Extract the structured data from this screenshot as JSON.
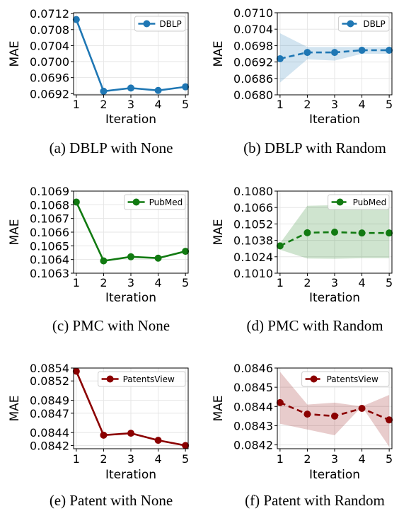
{
  "chart_data": [
    {
      "type": "line",
      "caption": "(a) DBLP with None",
      "xlabel": "Iteration",
      "ylabel": "MAE",
      "x": [
        1,
        2,
        3,
        4,
        5
      ],
      "xlim": [
        0.9,
        5.1
      ],
      "ylim": [
        0.06917,
        0.07122
      ],
      "yticks": [
        0.0692,
        0.0696,
        0.07,
        0.0704,
        0.0708,
        0.0712
      ],
      "ytick_labels": [
        "0.0692",
        "0.0696",
        "0.0700",
        "0.0704",
        "0.0708",
        "0.0712"
      ],
      "grid": true,
      "legend_position": "top-right",
      "color": "#1f77b4",
      "dashed": false,
      "series": [
        {
          "name": "DBLP",
          "values": [
            0.07105,
            0.06926,
            0.06934,
            0.06928,
            0.06937
          ]
        }
      ]
    },
    {
      "type": "line",
      "caption": "(b) DBLP with Random",
      "xlabel": "Iteration",
      "ylabel": "MAE",
      "x": [
        1,
        2,
        3,
        4,
        5
      ],
      "xlim": [
        0.9,
        5.1
      ],
      "ylim": [
        0.068,
        0.071
      ],
      "yticks": [
        0.068,
        0.0686,
        0.0692,
        0.0698,
        0.0704,
        0.071
      ],
      "ytick_labels": [
        "0.0680",
        "0.0686",
        "0.0692",
        "0.0698",
        "0.0704",
        "0.0710"
      ],
      "grid": true,
      "legend_position": "top-right",
      "color": "#1f77b4",
      "dashed": true,
      "series": [
        {
          "name": "DBLP",
          "values": [
            0.06932,
            0.06955,
            0.06955,
            0.06963,
            0.06963
          ],
          "band_upper": [
            0.07025,
            0.06975,
            0.06975,
            0.06975,
            0.06975
          ],
          "band_lower": [
            0.06845,
            0.0693,
            0.06925,
            0.0695,
            0.0695
          ]
        }
      ]
    },
    {
      "type": "line",
      "caption": "(c) PMC with None",
      "xlabel": "Iteration",
      "ylabel": "MAE",
      "x": [
        1,
        2,
        3,
        4,
        5
      ],
      "xlim": [
        0.9,
        5.1
      ],
      "ylim": [
        0.1063,
        0.1069
      ],
      "yticks": [
        0.1063,
        0.1064,
        0.1065,
        0.1066,
        0.1067,
        0.1068,
        0.1069
      ],
      "ytick_labels": [
        "0.1063",
        "0.1064",
        "0.1065",
        "0.1066",
        "0.1067",
        "0.1068",
        "0.1069"
      ],
      "grid": true,
      "legend_position": "top-right",
      "color": "#117a11",
      "dashed": false,
      "series": [
        {
          "name": "PubMed",
          "values": [
            0.10682,
            0.10639,
            0.10642,
            0.10641,
            0.10646
          ]
        }
      ]
    },
    {
      "type": "line",
      "caption": "(d) PMC with Random",
      "xlabel": "Iteration",
      "ylabel": "MAE",
      "x": [
        1,
        2,
        3,
        4,
        5
      ],
      "xlim": [
        0.9,
        5.1
      ],
      "ylim": [
        0.101,
        0.108
      ],
      "yticks": [
        0.101,
        0.1024,
        0.1038,
        0.1052,
        0.1066,
        0.108
      ],
      "ytick_labels": [
        "0.1010",
        "0.1024",
        "0.1038",
        "0.1052",
        "0.1066",
        "0.1080"
      ],
      "grid": true,
      "legend_position": "top-right",
      "color": "#117a11",
      "dashed": true,
      "series": [
        {
          "name": "PubMed",
          "values": [
            0.10333,
            0.10445,
            0.1045,
            0.10443,
            0.10443
          ],
          "band_upper": [
            0.10355,
            0.10675,
            0.1068,
            0.10665,
            0.10665
          ],
          "band_lower": [
            0.103,
            0.10225,
            0.10223,
            0.10228,
            0.10228
          ]
        }
      ]
    },
    {
      "type": "line",
      "caption": "(e) Patent with None",
      "xlabel": "Iteration",
      "ylabel": "MAE",
      "x": [
        1,
        2,
        3,
        4,
        5
      ],
      "xlim": [
        0.9,
        5.1
      ],
      "ylim": [
        0.08415,
        0.0854
      ],
      "yticks": [
        0.0842,
        0.0844,
        0.0847,
        0.0849,
        0.0852,
        0.0854
      ],
      "ytick_labels": [
        "0.0842",
        "0.0844",
        "0.0847",
        "0.0849",
        "0.0852",
        "0.0854"
      ],
      "grid": true,
      "legend_position": "top-right",
      "color": "#8b0000",
      "dashed": false,
      "series": [
        {
          "name": "PatentsView",
          "values": [
            0.08535,
            0.08436,
            0.08439,
            0.08428,
            0.0842
          ]
        }
      ]
    },
    {
      "type": "line",
      "caption": "(f) Patent with Random",
      "xlabel": "Iteration",
      "ylabel": "MAE",
      "x": [
        1,
        2,
        3,
        4,
        5
      ],
      "xlim": [
        0.9,
        5.1
      ],
      "ylim": [
        0.08418,
        0.0846
      ],
      "yticks": [
        0.0842,
        0.0843,
        0.0844,
        0.0845,
        0.0846
      ],
      "ytick_labels": [
        "0.0842",
        "0.0843",
        "0.0844",
        "0.0845",
        "0.0846"
      ],
      "grid": true,
      "legend_position": "top-right",
      "color": "#8b0000",
      "dashed": true,
      "series": [
        {
          "name": "PatentsView",
          "values": [
            0.08442,
            0.08436,
            0.08435,
            0.08439,
            0.08433
          ],
          "band_upper": [
            0.08458,
            0.08441,
            0.08442,
            0.0844,
            0.08446
          ],
          "band_lower": [
            0.08431,
            0.08428,
            0.08425,
            0.0844,
            0.08419
          ]
        }
      ]
    }
  ]
}
